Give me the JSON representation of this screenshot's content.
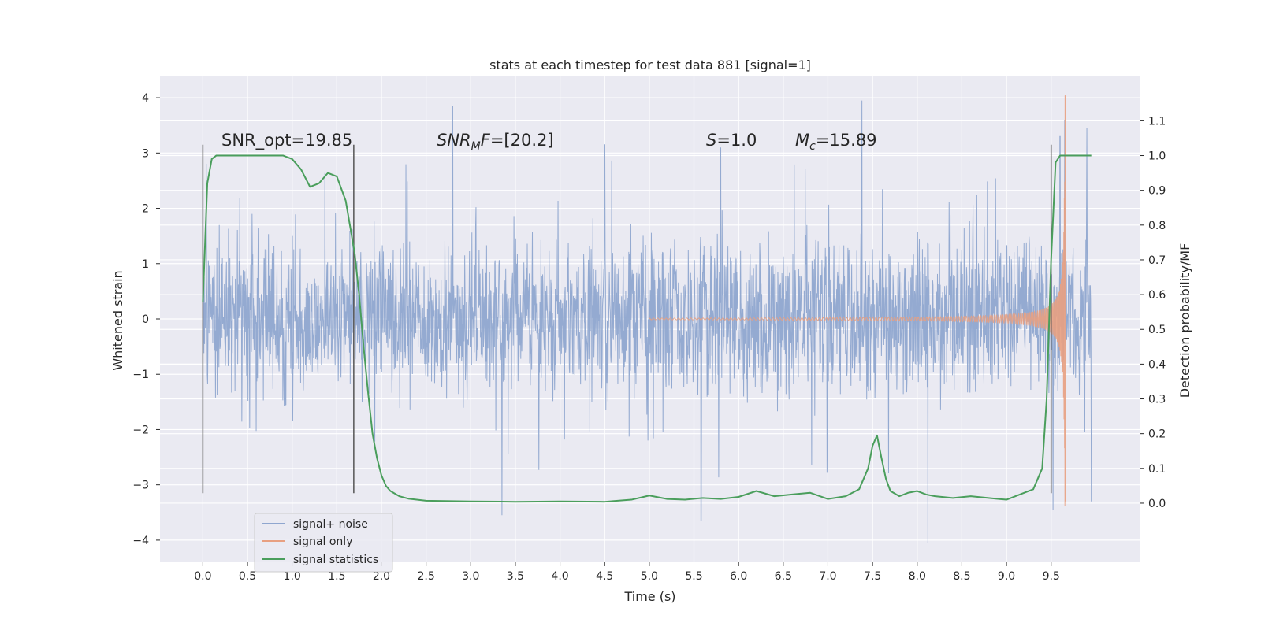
{
  "chart_data": {
    "type": "line",
    "title": "stats at each timestep for test data 881 [signal=1]",
    "xlabel": "Time (s)",
    "ylabel": "Whitened strain",
    "y2label": "Detection probability/MF",
    "xlim": [
      -0.48,
      10.5
    ],
    "ylim": [
      -4.4,
      4.4
    ],
    "y2lim": [
      -0.17,
      1.23
    ],
    "grid": true,
    "legend_position": "lower-left",
    "x_ticks": [
      0.0,
      0.5,
      1.0,
      1.5,
      2.0,
      2.5,
      3.0,
      3.5,
      4.0,
      4.5,
      5.0,
      5.5,
      6.0,
      6.5,
      7.0,
      7.5,
      8.0,
      8.5,
      9.0,
      9.5
    ],
    "x_tick_labels": [
      "0.0",
      "0.5",
      "1.0",
      "1.5",
      "2.0",
      "2.5",
      "3.0",
      "3.5",
      "4.0",
      "4.5",
      "5.0",
      "5.5",
      "6.0",
      "6.5",
      "7.0",
      "7.5",
      "8.0",
      "8.5",
      "9.0",
      "9.5"
    ],
    "y_ticks": [
      -4,
      -3,
      -2,
      -1,
      0,
      1,
      2,
      3,
      4
    ],
    "y_tick_labels": [
      "−4",
      "−3",
      "−2",
      "−1",
      "0",
      "1",
      "2",
      "3",
      "4"
    ],
    "y2_ticks": [
      0.0,
      0.1,
      0.2,
      0.3,
      0.4,
      0.5,
      0.6,
      0.7,
      0.8,
      0.9,
      1.0,
      1.1
    ],
    "y2_tick_labels": [
      "0.0",
      "0.1",
      "0.2",
      "0.3",
      "0.4",
      "0.5",
      "0.6",
      "0.7",
      "0.8",
      "0.9",
      "1.0",
      "1.1"
    ],
    "annotations": [
      {
        "text": "SNR_opt=19.85",
        "x": 0.2,
        "y": 3.2
      },
      {
        "text": "SNR_MF=[20.2]",
        "x": 2.6,
        "y": 3.2
      },
      {
        "text": "S=1.0",
        "x": 5.6,
        "y": 3.2
      },
      {
        "text": "M_c=15.89",
        "x": 6.6,
        "y": 3.2
      }
    ],
    "vertical_markers": [
      {
        "x": 0.0,
        "y_from": -3.15,
        "y_to": 3.15
      },
      {
        "x": 1.69,
        "y_from": -3.15,
        "y_to": 3.15
      },
      {
        "x": 9.5,
        "y_from": -3.15,
        "y_to": 3.15
      }
    ],
    "series": [
      {
        "name": "signal+ noise",
        "color": "#8fa6cf",
        "axis": "left",
        "kind": "dense-noise",
        "x_range": [
          0.0,
          9.95
        ],
        "typical_amplitude": 1.3,
        "peaks": [
          [
            2.8,
            3.85
          ],
          [
            7.38,
            3.95
          ],
          [
            9.65,
            3.6
          ],
          [
            9.9,
            3.45
          ],
          [
            4.5,
            3.15
          ],
          [
            5.8,
            3.1
          ],
          [
            9.6,
            3.3
          ],
          [
            3.35,
            -3.55
          ],
          [
            5.58,
            -3.65
          ],
          [
            8.12,
            -4.05
          ],
          [
            9.52,
            -3.45
          ],
          [
            9.95,
            -3.3
          ]
        ]
      },
      {
        "name": "signal only",
        "color": "#e8a081",
        "axis": "left",
        "kind": "chirp",
        "x_range": [
          5.0,
          9.66
        ],
        "t_coalescence": 9.66,
        "peak_amplitude": 4.05
      },
      {
        "name": "signal statistics",
        "color": "#4a9e5c",
        "axis": "right",
        "x": [
          0.0,
          0.05,
          0.1,
          0.15,
          0.2,
          0.3,
          0.4,
          0.5,
          0.6,
          0.7,
          0.8,
          0.9,
          1.0,
          1.1,
          1.2,
          1.3,
          1.4,
          1.5,
          1.6,
          1.7,
          1.75,
          1.8,
          1.85,
          1.9,
          1.95,
          2.0,
          2.05,
          2.1,
          2.2,
          2.3,
          2.5,
          3.0,
          3.5,
          4.0,
          4.5,
          4.8,
          5.0,
          5.2,
          5.4,
          5.6,
          5.8,
          6.0,
          6.2,
          6.4,
          6.6,
          6.8,
          7.0,
          7.2,
          7.35,
          7.45,
          7.5,
          7.55,
          7.6,
          7.65,
          7.7,
          7.8,
          7.9,
          8.0,
          8.1,
          8.2,
          8.4,
          8.6,
          8.8,
          9.0,
          9.2,
          9.3,
          9.4,
          9.45,
          9.5,
          9.55,
          9.6,
          9.7,
          9.8,
          9.95
        ],
        "values": [
          0.58,
          0.92,
          0.99,
          1.0,
          1.0,
          1.0,
          1.0,
          1.0,
          1.0,
          1.0,
          1.0,
          1.0,
          0.99,
          0.96,
          0.91,
          0.92,
          0.95,
          0.94,
          0.87,
          0.72,
          0.6,
          0.45,
          0.32,
          0.2,
          0.13,
          0.08,
          0.05,
          0.035,
          0.02,
          0.013,
          0.007,
          0.005,
          0.004,
          0.005,
          0.004,
          0.01,
          0.022,
          0.012,
          0.01,
          0.015,
          0.012,
          0.018,
          0.035,
          0.02,
          0.025,
          0.03,
          0.012,
          0.02,
          0.04,
          0.1,
          0.165,
          0.195,
          0.13,
          0.07,
          0.035,
          0.02,
          0.03,
          0.035,
          0.025,
          0.02,
          0.015,
          0.02,
          0.015,
          0.01,
          0.03,
          0.04,
          0.1,
          0.3,
          0.7,
          0.98,
          1.0,
          1.0,
          1.0,
          1.0
        ]
      }
    ]
  }
}
